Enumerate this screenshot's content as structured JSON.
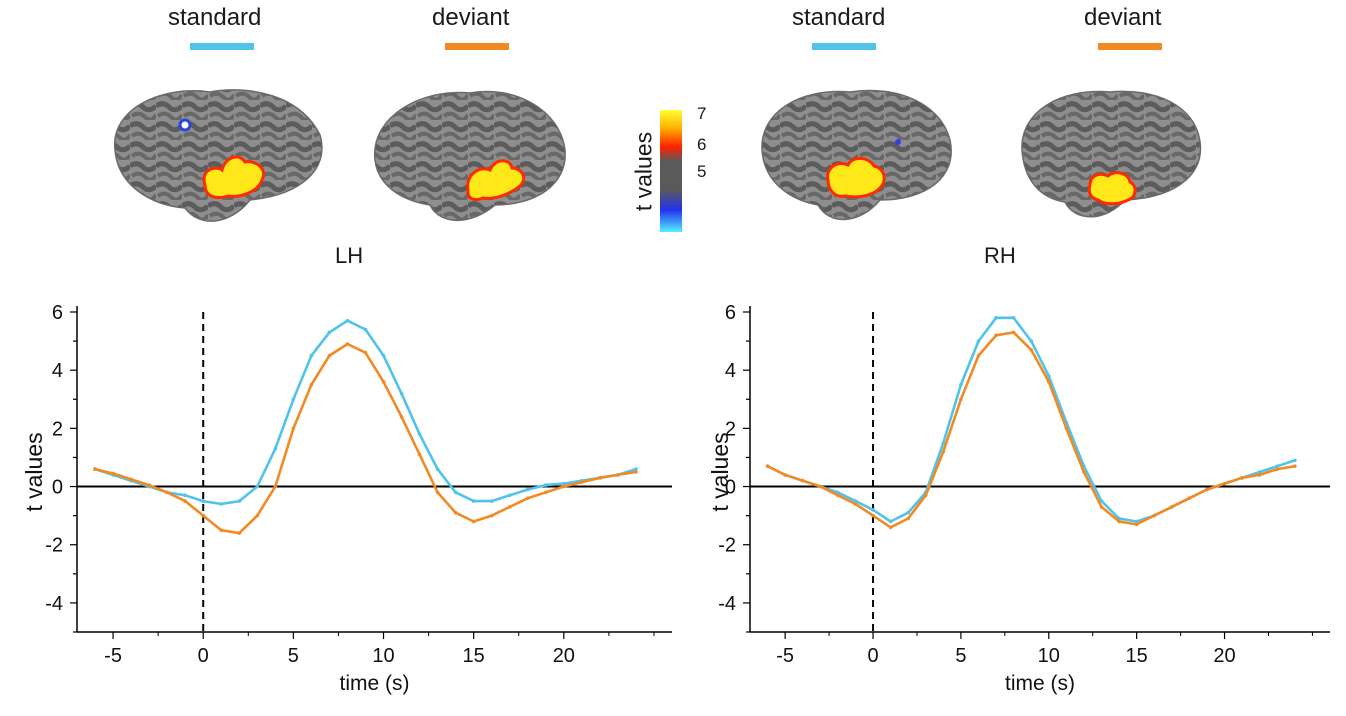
{
  "legend": {
    "lh": [
      {
        "label": "standard",
        "color": "#4FC3EA"
      },
      {
        "label": "deviant",
        "color": "#F28A23"
      }
    ],
    "rh": [
      {
        "label": "standard",
        "color": "#4FC3EA"
      },
      {
        "label": "deviant",
        "color": "#F28A23"
      }
    ]
  },
  "hemispheres": {
    "left": "LH",
    "right": "RH"
  },
  "colorbar": {
    "title": "t values",
    "ticks": [
      "7",
      "6",
      "5"
    ],
    "colors": [
      "#FFFF33",
      "#FFB000",
      "#FF2200",
      "#5a5a5a",
      "#5a5a5a",
      "#2233EE",
      "#55EEFF"
    ]
  },
  "chart_data": [
    {
      "type": "line",
      "panel": "LH",
      "title": "",
      "xlabel": "time (s)",
      "ylabel": "t values",
      "xlim": [
        -7,
        26
      ],
      "ylim": [
        -5,
        6
      ],
      "xticks": [
        -5,
        0,
        5,
        10,
        15,
        20
      ],
      "yticks": [
        -4,
        -2,
        0,
        2,
        4,
        6
      ],
      "onset_line_x": 0,
      "series": [
        {
          "name": "standard",
          "color": "#4FC3EA",
          "x": [
            -6,
            -5,
            -4,
            -3,
            -2,
            -1,
            0,
            1,
            2,
            3,
            4,
            5,
            6,
            7,
            8,
            9,
            10,
            11,
            12,
            13,
            14,
            15,
            16,
            17,
            18,
            19,
            20,
            21,
            22,
            23,
            24
          ],
          "values": [
            0.6,
            0.4,
            0.2,
            0,
            -0.2,
            -0.3,
            -0.5,
            -0.6,
            -0.5,
            0,
            1.3,
            3.0,
            4.5,
            5.3,
            5.7,
            5.4,
            4.5,
            3.2,
            1.8,
            0.6,
            -0.2,
            -0.5,
            -0.5,
            -0.3,
            -0.1,
            0.05,
            0.1,
            0.2,
            0.3,
            0.4,
            0.6
          ]
        },
        {
          "name": "deviant",
          "color": "#F28A23",
          "x": [
            -6,
            -5,
            -4,
            -3,
            -2,
            -1,
            0,
            1,
            2,
            3,
            4,
            5,
            6,
            7,
            8,
            9,
            10,
            11,
            12,
            13,
            14,
            15,
            16,
            17,
            18,
            19,
            20,
            21,
            22,
            23,
            24
          ],
          "values": [
            0.6,
            0.45,
            0.25,
            0.05,
            -0.2,
            -0.5,
            -1.0,
            -1.5,
            -1.6,
            -1.0,
            0,
            2.0,
            3.5,
            4.5,
            4.9,
            4.6,
            3.6,
            2.4,
            1.1,
            -0.2,
            -0.9,
            -1.2,
            -1.0,
            -0.7,
            -0.4,
            -0.2,
            0,
            0.15,
            0.3,
            0.4,
            0.5
          ]
        }
      ]
    },
    {
      "type": "line",
      "panel": "RH",
      "title": "",
      "xlabel": "time (s)",
      "ylabel": "t values",
      "xlim": [
        -7,
        26
      ],
      "ylim": [
        -5,
        6
      ],
      "xticks": [
        -5,
        0,
        5,
        10,
        15,
        20
      ],
      "yticks": [
        -4,
        -2,
        0,
        2,
        4,
        6
      ],
      "onset_line_x": 0,
      "series": [
        {
          "name": "standard",
          "color": "#4FC3EA",
          "x": [
            -6,
            -5,
            -4,
            -3,
            -2,
            -1,
            0,
            1,
            2,
            3,
            4,
            5,
            6,
            7,
            8,
            9,
            10,
            11,
            12,
            13,
            14,
            15,
            16,
            17,
            18,
            19,
            20,
            21,
            22,
            23,
            24
          ],
          "values": [
            0.7,
            0.4,
            0.2,
            0,
            -0.2,
            -0.5,
            -0.8,
            -1.2,
            -0.9,
            -0.2,
            1.5,
            3.5,
            5.0,
            5.8,
            5.8,
            5.0,
            3.8,
            2.2,
            0.7,
            -0.5,
            -1.1,
            -1.2,
            -1.0,
            -0.7,
            -0.4,
            -0.1,
            0.1,
            0.3,
            0.5,
            0.7,
            0.9
          ]
        },
        {
          "name": "deviant",
          "color": "#F28A23",
          "x": [
            -6,
            -5,
            -4,
            -3,
            -2,
            -1,
            0,
            1,
            2,
            3,
            4,
            5,
            6,
            7,
            8,
            9,
            10,
            11,
            12,
            13,
            14,
            15,
            16,
            17,
            18,
            19,
            20,
            21,
            22,
            23,
            24
          ],
          "values": [
            0.7,
            0.4,
            0.2,
            0,
            -0.3,
            -0.6,
            -1.0,
            -1.4,
            -1.1,
            -0.3,
            1.2,
            3.0,
            4.5,
            5.2,
            5.3,
            4.7,
            3.6,
            2.0,
            0.5,
            -0.7,
            -1.2,
            -1.3,
            -1.0,
            -0.7,
            -0.4,
            -0.1,
            0.1,
            0.3,
            0.4,
            0.6,
            0.7
          ]
        }
      ]
    }
  ]
}
